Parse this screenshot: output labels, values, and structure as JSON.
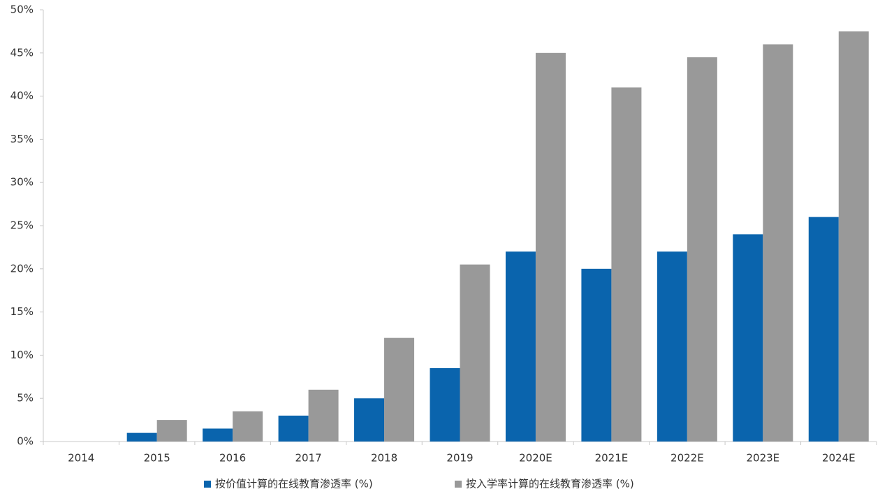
{
  "chart_data": {
    "type": "bar",
    "categories": [
      "2014",
      "2015",
      "2016",
      "2017",
      "2018",
      "2019",
      "2020E",
      "2021E",
      "2022E",
      "2023E",
      "2024E"
    ],
    "series": [
      {
        "name": "按价值计算的在线教育渗透率 (%)",
        "color": "#0a64ad",
        "values": [
          0,
          1,
          1.5,
          3,
          5,
          8.5,
          22,
          20,
          22,
          24,
          26
        ]
      },
      {
        "name": "按入学率计算的在线教育渗透率 (%)",
        "color": "#999999",
        "values": [
          0,
          2.5,
          3.5,
          6,
          12,
          20.5,
          45,
          41,
          44.5,
          46,
          47.5
        ]
      }
    ],
    "ylim": [
      0,
      50
    ],
    "yticks": [
      {
        "value": 0,
        "label": "0%"
      },
      {
        "value": 5,
        "label": "5%"
      },
      {
        "value": 10,
        "label": "10%"
      },
      {
        "value": 15,
        "label": "15%"
      },
      {
        "value": 20,
        "label": "20%"
      },
      {
        "value": 25,
        "label": "25%"
      },
      {
        "value": 30,
        "label": "30%"
      },
      {
        "value": 35,
        "label": "35%"
      },
      {
        "value": 40,
        "label": "40%"
      },
      {
        "value": 45,
        "label": "45%"
      },
      {
        "value": 50,
        "label": "50%"
      }
    ],
    "grid": false,
    "legend": "bottom"
  }
}
